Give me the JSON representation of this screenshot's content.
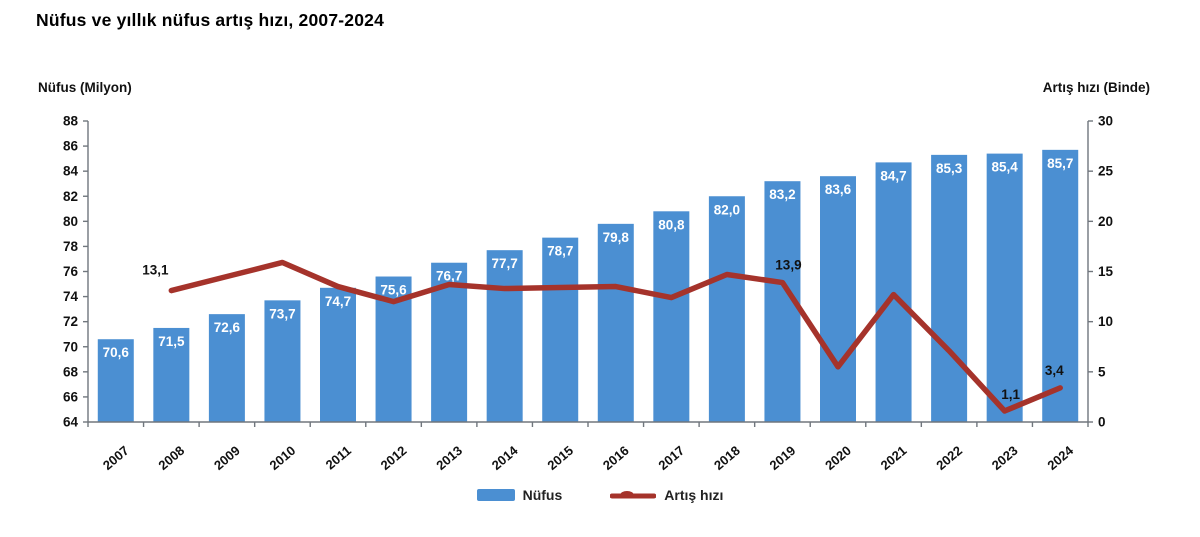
{
  "title": "Nüfus ve yıllık nüfus artış hızı, 2007-2024",
  "left_axis": {
    "label": "Nüfus (Milyon)",
    "min": 64,
    "max": 88,
    "step": 2
  },
  "right_axis": {
    "label": "Artış hızı (Binde)",
    "min": 0,
    "max": 30,
    "step": 5
  },
  "legend": {
    "bar_label": "Nüfus",
    "line_label": "Artış hızı"
  },
  "colors": {
    "bar": "#4b8fd2",
    "line": "#a5332b",
    "bar_value_text": "#ffffff",
    "line_value_text": "#111111",
    "axis": "#70767d",
    "tick_text": "#111111"
  },
  "chart_data": {
    "type": "bar+line combo",
    "title": "Nüfus ve yıllık nüfus artış hızı, 2007-2024",
    "categories": [
      "2007",
      "2008",
      "2009",
      "2010",
      "2011",
      "2012",
      "2013",
      "2014",
      "2015",
      "2016",
      "2017",
      "2018",
      "2019",
      "2020",
      "2021",
      "2022",
      "2023",
      "2024"
    ],
    "series": [
      {
        "name": "Nüfus",
        "type": "bar",
        "axis": "left",
        "values": [
          70.6,
          71.5,
          72.6,
          73.7,
          74.7,
          75.6,
          76.7,
          77.7,
          78.7,
          79.8,
          80.8,
          82.0,
          83.2,
          83.6,
          84.7,
          85.3,
          85.4,
          85.7
        ]
      },
      {
        "name": "Artış hızı",
        "type": "line",
        "axis": "right",
        "values": [
          null,
          13.1,
          14.5,
          15.9,
          13.5,
          12.0,
          13.7,
          13.3,
          13.4,
          13.5,
          12.4,
          14.7,
          13.9,
          5.5,
          12.7,
          7.1,
          1.1,
          3.4
        ],
        "labeled_points": [
          {
            "year": "2008",
            "value": 13.1
          },
          {
            "year": "2019",
            "value": 13.9
          },
          {
            "year": "2023",
            "value": 1.1
          },
          {
            "year": "2024",
            "value": 3.4
          }
        ]
      }
    ],
    "left_axis_range": [
      64,
      88
    ],
    "right_axis_range": [
      0,
      30
    ],
    "grid": false,
    "legend_position": "bottom-center",
    "decimal_separator": ","
  }
}
